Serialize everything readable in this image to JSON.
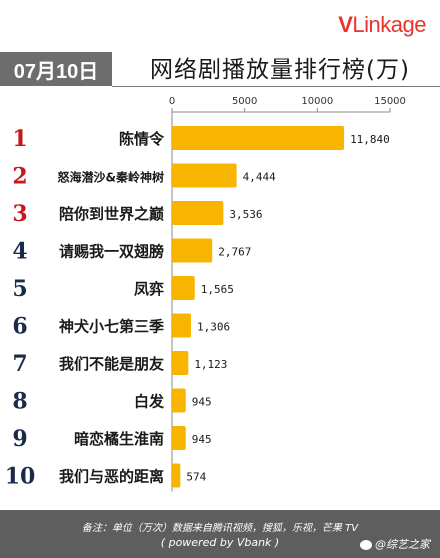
{
  "brand": {
    "v": "V",
    "rest": "Linkage"
  },
  "date": "07月10日",
  "title": "网络剧播放量排行榜(万)",
  "chart_data": {
    "type": "bar",
    "orientation": "horizontal",
    "ranks": [
      "1",
      "2",
      "3",
      "4",
      "5",
      "6",
      "7",
      "8",
      "9",
      "10"
    ],
    "categories": [
      "陈情令",
      "怒海潜沙&秦岭神树",
      "陪你到世界之巅",
      "请赐我一双翅膀",
      "凤弈",
      "神犬小七第三季",
      "我们不能是朋友",
      "白发",
      "暗恋橘生淮南",
      "我们与恶的距离"
    ],
    "values": [
      11840,
      4444,
      3536,
      2767,
      1565,
      1306,
      1123,
      945,
      945,
      574
    ],
    "value_labels": [
      "11,840",
      "4,444",
      "3,536",
      "2,767",
      "1,565",
      "1,306",
      "1,123",
      "945",
      "945",
      "574"
    ],
    "xlim": [
      0,
      15000
    ],
    "x_ticks": [
      "0",
      "5000",
      "10000",
      "15000"
    ],
    "x_tick_values": [
      0,
      5000,
      10000,
      15000
    ],
    "axis_position": "top",
    "bar_color": "#f8b500",
    "rank_colors_top3": "#c8161d",
    "rank_color_other": "#1b2a4a"
  },
  "footer": {
    "line1": "备注：单位（万次）数据来自腾讯视频，搜狐，乐视，芒果 TV",
    "line2": "( powered by Vbank )",
    "weibo": "@综艺之家"
  }
}
